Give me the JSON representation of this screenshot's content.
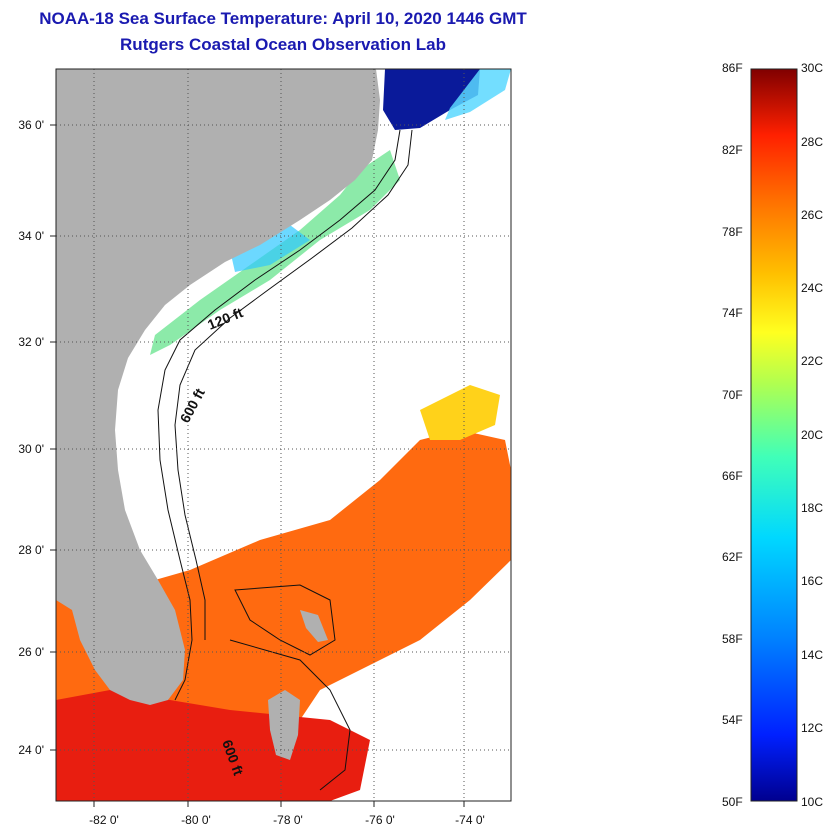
{
  "header": {
    "title": "NOAA-18 Sea Surface Temperature:  April 10, 2020 1446 GMT",
    "subtitle": "Rutgers Coastal Ocean Observation Lab"
  },
  "map": {
    "lat_labels": [
      "36 0'",
      "34 0'",
      "32 0'",
      "30 0'",
      "28 0'",
      "26 0'",
      "24 0'"
    ],
    "lon_labels": [
      "-82 0'",
      "-80 0'",
      "-78 0'",
      "-76 0'",
      "-74 0'"
    ],
    "contour_labels": [
      "120 ft",
      "600 ft",
      "600 ft"
    ],
    "colors": {
      "land": "#b0b0b0",
      "no_data": "#ffffff",
      "grid": "#555555"
    }
  },
  "colorbar": {
    "fahrenheit_labels": [
      "86F",
      "82F",
      "78F",
      "74F",
      "70F",
      "66F",
      "62F",
      "58F",
      "54F",
      "50F"
    ],
    "celsius_labels": [
      "30C",
      "28C",
      "26C",
      "24C",
      "22C",
      "20C",
      "18C",
      "16C",
      "14C",
      "12C",
      "10C"
    ],
    "scale_colors": [
      "#800000",
      "#d00000",
      "#ff3000",
      "#ff7a00",
      "#ffc000",
      "#ffff20",
      "#a0ff60",
      "#40ffb8",
      "#00d0ff",
      "#0080ff",
      "#0020ff",
      "#00008f"
    ]
  }
}
